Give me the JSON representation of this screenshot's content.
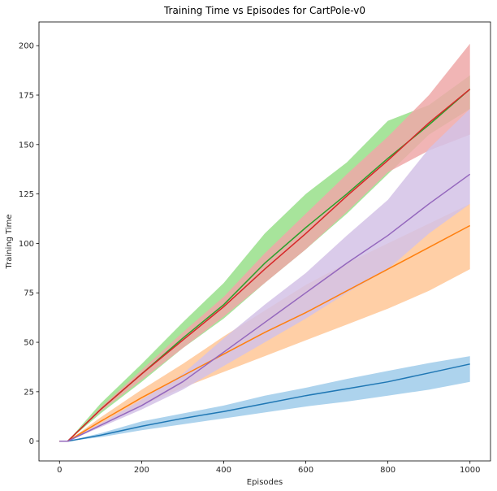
{
  "chart_data": {
    "type": "line",
    "title": "Training Time vs Episodes for CartPole-v0",
    "xlabel": "Episodes",
    "ylabel": "Training Time",
    "xlim": [
      -50,
      1050
    ],
    "ylim": [
      -10,
      212
    ],
    "xticks": [
      0,
      200,
      400,
      600,
      800,
      1000
    ],
    "yticks": [
      0,
      25,
      50,
      75,
      100,
      125,
      150,
      175,
      200
    ],
    "grid": false,
    "legend": "none",
    "series": [
      {
        "color": "#1f77b4",
        "band_color": "#9fcbea",
        "x": [
          0,
          20,
          100,
          200,
          300,
          400,
          500,
          600,
          700,
          800,
          900,
          1000
        ],
        "y": [
          0,
          0,
          3,
          7.5,
          11.5,
          15,
          19,
          23,
          26.5,
          30,
          34.5,
          39
        ],
        "lower": [
          0,
          0,
          2,
          5.5,
          8.5,
          11.5,
          14.5,
          17.5,
          20,
          23,
          26,
          30
        ],
        "upper": [
          0,
          0,
          4,
          10,
          14,
          18,
          23,
          27,
          31.5,
          35.5,
          39.5,
          43
        ]
      },
      {
        "color": "#ff7f0e",
        "band_color": "#ffc796",
        "x": [
          0,
          20,
          100,
          200,
          300,
          400,
          500,
          600,
          700,
          800,
          900,
          1000
        ],
        "y": [
          0,
          0,
          10,
          22,
          33,
          44,
          55,
          65,
          76,
          87,
          98,
          109
        ],
        "lower": [
          0,
          0,
          8,
          18,
          27,
          35,
          43,
          51,
          59,
          67,
          76,
          87
        ],
        "upper": [
          0,
          0,
          12,
          26,
          39,
          53,
          66,
          79,
          90,
          100,
          110,
          120
        ]
      },
      {
        "color": "#2ca02c",
        "band_color": "#98df8a",
        "x": [
          0,
          20,
          100,
          200,
          300,
          400,
          500,
          600,
          700,
          800,
          900,
          1000
        ],
        "y": [
          0,
          0,
          16,
          34,
          52,
          69,
          90,
          108,
          125,
          143,
          160,
          178
        ],
        "lower": [
          0,
          0,
          14,
          30,
          47,
          62,
          80,
          97,
          115,
          135,
          155,
          168
        ],
        "upper": [
          0,
          0,
          19,
          39,
          60,
          80,
          105,
          125,
          141,
          162,
          170,
          185
        ]
      },
      {
        "color": "#d62728",
        "band_color": "#eea8a8",
        "x": [
          0,
          20,
          100,
          200,
          300,
          400,
          500,
          600,
          700,
          800,
          900,
          1000
        ],
        "y": [
          0,
          0,
          16,
          34,
          51,
          68,
          87,
          105,
          124,
          142,
          161,
          178
        ],
        "lower": [
          0,
          0,
          15,
          31,
          47,
          63,
          80,
          97,
          116,
          136,
          147,
          155
        ],
        "upper": [
          0,
          0,
          17,
          36,
          55,
          73,
          95,
          115,
          135,
          154,
          175,
          201
        ]
      },
      {
        "color": "#9467bd",
        "band_color": "#d4c2e6",
        "x": [
          0,
          20,
          100,
          200,
          300,
          400,
          500,
          600,
          700,
          800,
          900,
          1000
        ],
        "y": [
          0,
          0,
          8,
          18,
          30,
          45,
          60,
          75,
          90,
          104,
          120,
          135
        ],
        "lower": [
          0,
          0,
          7,
          16,
          26,
          38,
          50,
          62,
          75,
          87,
          105,
          120
        ],
        "upper": [
          0,
          0,
          9,
          21,
          34,
          52,
          69,
          85,
          104,
          122,
          148,
          168
        ]
      }
    ]
  }
}
